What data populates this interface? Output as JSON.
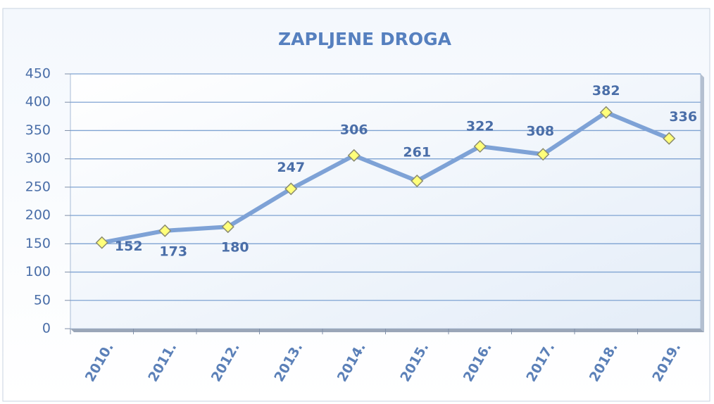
{
  "chart_data": {
    "type": "line",
    "title": "ZAPLJENE DROGA",
    "categories": [
      "2010.",
      "2011.",
      "2012.",
      "2013.",
      "2014.",
      "2015.",
      "2016.",
      "2017.",
      "2018.",
      "2019."
    ],
    "values": [
      152,
      173,
      180,
      247,
      306,
      261,
      322,
      308,
      382,
      336
    ],
    "color": "#7ea2d6",
    "marker_color": "#ffff7a",
    "ylim": [
      0,
      450
    ],
    "yticks": [
      0,
      50,
      100,
      150,
      200,
      250,
      300,
      350,
      400,
      450
    ],
    "grid": true
  }
}
